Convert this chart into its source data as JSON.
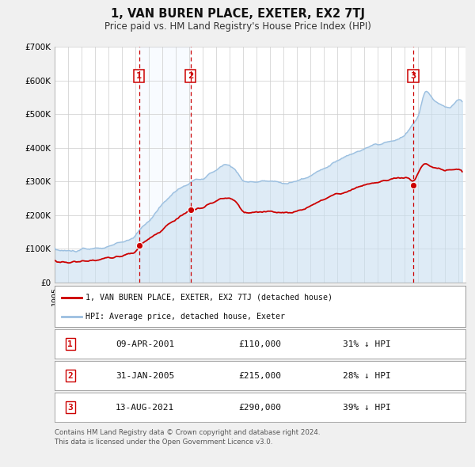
{
  "title": "1, VAN BUREN PLACE, EXETER, EX2 7TJ",
  "subtitle": "Price paid vs. HM Land Registry's House Price Index (HPI)",
  "ylim": [
    0,
    700000
  ],
  "yticks": [
    0,
    100000,
    200000,
    300000,
    400000,
    500000,
    600000,
    700000
  ],
  "ytick_labels": [
    "£0",
    "£100K",
    "£200K",
    "£300K",
    "£400K",
    "£500K",
    "£600K",
    "£700K"
  ],
  "xlim_start": 1995.0,
  "xlim_end": 2025.5,
  "xtick_years": [
    1995,
    1996,
    1997,
    1998,
    1999,
    2000,
    2001,
    2002,
    2003,
    2004,
    2005,
    2006,
    2007,
    2008,
    2009,
    2010,
    2011,
    2012,
    2013,
    2014,
    2015,
    2016,
    2017,
    2018,
    2019,
    2020,
    2021,
    2022,
    2023,
    2024,
    2025
  ],
  "hpi_color": "#9bbfe0",
  "hpi_fill_color": "#c8dff0",
  "price_color": "#cc0000",
  "vline_color": "#cc0000",
  "shade_color": "#ddeeff",
  "legend_label_price": "1, VAN BUREN PLACE, EXETER, EX2 7TJ (detached house)",
  "legend_label_hpi": "HPI: Average price, detached house, Exeter",
  "sales": [
    {
      "num": 1,
      "year": 2001.27,
      "price": 110000,
      "date": "09-APR-2001",
      "pct": "31% ↓ HPI"
    },
    {
      "num": 2,
      "year": 2005.08,
      "price": 215000,
      "date": "31-JAN-2005",
      "pct": "28% ↓ HPI"
    },
    {
      "num": 3,
      "year": 2021.62,
      "price": 290000,
      "date": "13-AUG-2021",
      "pct": "39% ↓ HPI"
    }
  ],
  "footnote1": "Contains HM Land Registry data © Crown copyright and database right 2024.",
  "footnote2": "This data is licensed under the Open Government Licence v3.0.",
  "background_color": "#f0f0f0",
  "plot_bg_color": "#ffffff",
  "grid_color": "#cccccc"
}
